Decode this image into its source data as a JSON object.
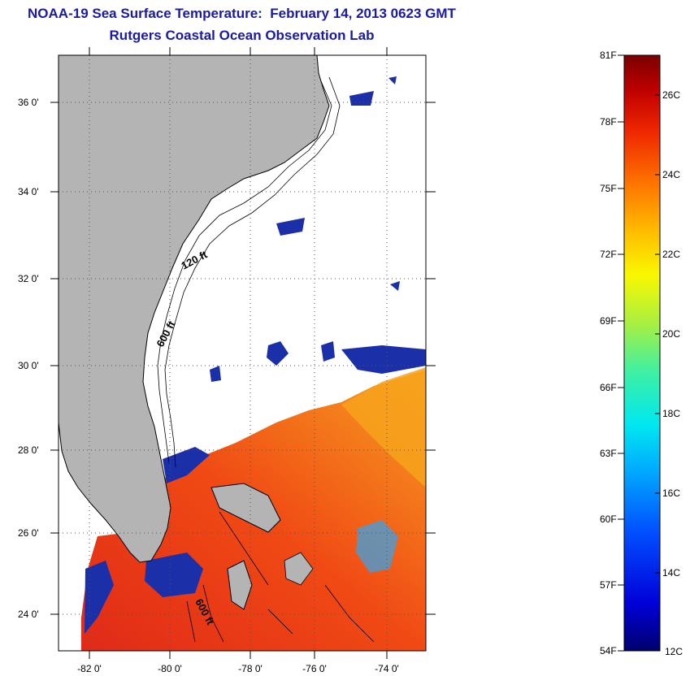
{
  "title": {
    "line1": "NOAA-19 Sea Surface Temperature:  February 14, 2013 0623 GMT",
    "line2": "Rutgers Coastal Ocean Observation Lab"
  },
  "map": {
    "lat_labels": [
      "36 0'",
      "34 0'",
      "32 0'",
      "30 0'",
      "28 0'",
      "26 0'",
      "24 0'"
    ],
    "lon_labels": [
      "-82 0'",
      "-80 0'",
      "-78 0'",
      "-76 0'",
      "-74 0'"
    ],
    "contour_labels": {
      "c120": "120 ft",
      "c600a": "600 ft",
      "c600b": "600 ft"
    }
  },
  "colorbar": {
    "f_labels": [
      "81F",
      "78F",
      "75F",
      "72F",
      "69F",
      "66F",
      "63F",
      "60F",
      "57F",
      "54F"
    ],
    "c_labels": [
      "26C",
      "24C",
      "22C",
      "20C",
      "18C",
      "16C",
      "14C",
      "12C"
    ]
  },
  "colors": {
    "title": "#1a1aa6",
    "land": "#b4b4b4",
    "cloud_blue": "#1a2fa8",
    "warm_red": "#e8321a",
    "warm_orange": "#f47a12"
  }
}
